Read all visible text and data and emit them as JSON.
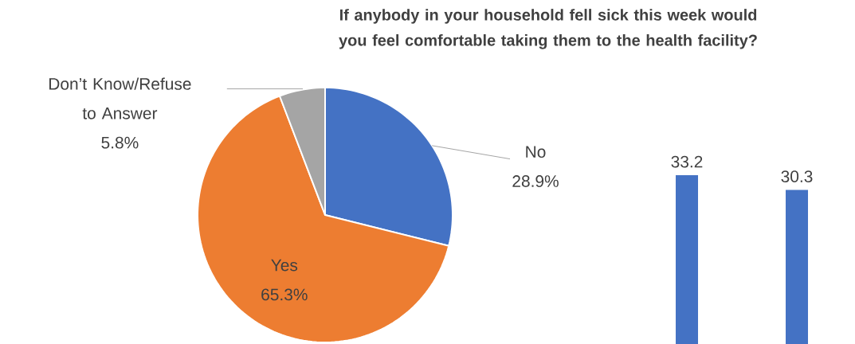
{
  "chart_data": [
    {
      "type": "pie",
      "title": "If anybody in your household fell sick this week would you feel comfortable taking them to the health facility?",
      "categories": [
        "No",
        "Yes",
        "Don’t Know/Refuse to Answer"
      ],
      "values": [
        28.9,
        65.3,
        5.8
      ],
      "colors": [
        "#4472c4",
        "#ed7d31",
        "#a5a5a5"
      ],
      "value_labels": [
        "28.9%",
        "65.3%",
        "5.8%"
      ]
    },
    {
      "type": "bar",
      "categories": [
        null,
        null
      ],
      "values": [
        33.2,
        30.3
      ],
      "color": "#4472c4",
      "data_labels": true
    }
  ]
}
